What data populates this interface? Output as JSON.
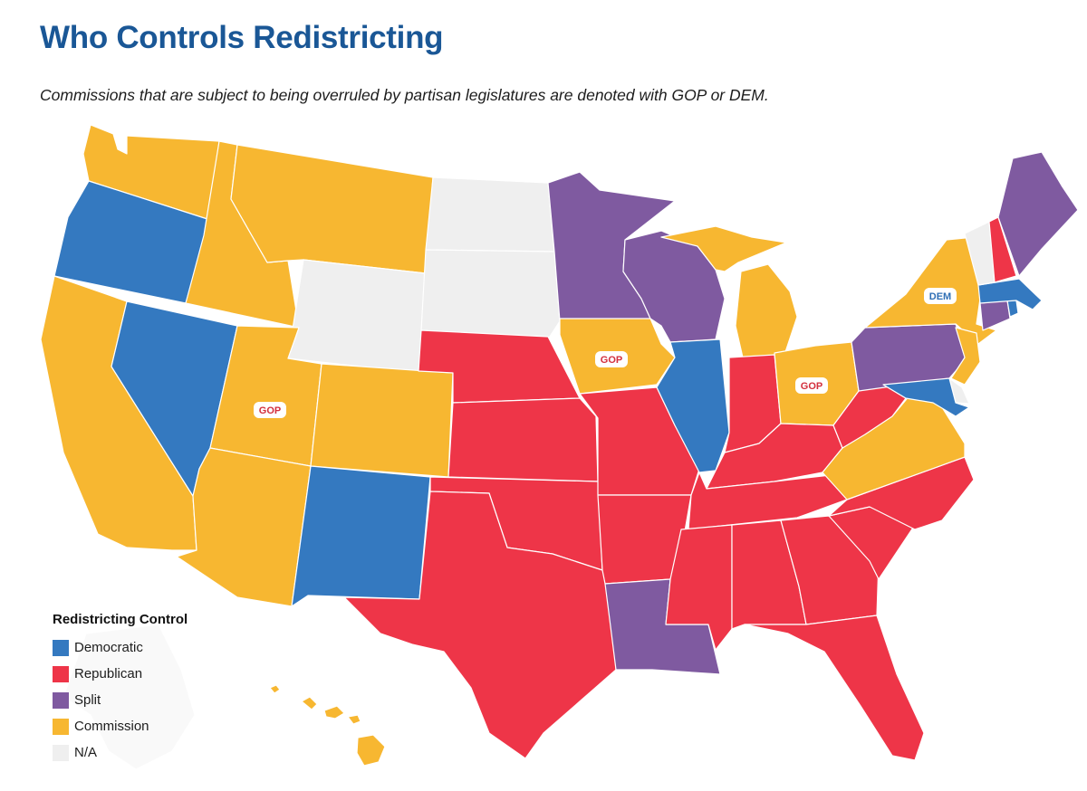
{
  "title": "Who Controls Redistricting",
  "subtitle": "Commissions that are subject to being overruled by partisan legislatures are denoted with GOP or DEM.",
  "colors": {
    "Democratic": "#3479c0",
    "Republican": "#ee3548",
    "Split": "#7f5aa0",
    "Commission": "#f7b731",
    "N/A": "#efefef"
  },
  "legend": {
    "title": "Redistricting Control",
    "items": [
      {
        "label": "Democratic",
        "category": "Democratic"
      },
      {
        "label": "Republican",
        "category": "Republican"
      },
      {
        "label": "Split",
        "category": "Split"
      },
      {
        "label": "Commission",
        "category": "Commission"
      },
      {
        "label": "N/A",
        "category": "N/A"
      }
    ]
  },
  "states": {
    "WA": "Commission",
    "OR": "Democratic",
    "CA": "Commission",
    "ID": "Commission",
    "NV": "Democratic",
    "MT": "Commission",
    "WY": "N/A",
    "UT": "Commission",
    "AZ": "Commission",
    "CO": "Commission",
    "NM": "Democratic",
    "ND": "N/A",
    "SD": "N/A",
    "NE": "Republican",
    "KS": "Republican",
    "OK": "Republican",
    "TX": "Republican",
    "MN": "Split",
    "IA": "Commission",
    "MO": "Republican",
    "AR": "Republican",
    "LA": "Split",
    "WI": "Split",
    "IL": "Democratic",
    "MI": "Commission",
    "IN": "Republican",
    "OH": "Commission",
    "KY": "Republican",
    "TN": "Republican",
    "MS": "Republican",
    "AL": "Republican",
    "GA": "Republican",
    "FL": "Republican",
    "SC": "Republican",
    "NC": "Republican",
    "VA": "Commission",
    "WV": "Republican",
    "PA": "Split",
    "NY": "Commission",
    "NJ": "Commission",
    "DE": "N/A",
    "MD": "Democratic",
    "CT": "Split",
    "RI": "Democratic",
    "MA": "Democratic",
    "VT": "N/A",
    "NH": "Republican",
    "ME": "Split",
    "HI": "Commission",
    "AK": "N/A"
  },
  "annotations": [
    {
      "state": "UT",
      "text": "GOP"
    },
    {
      "state": "IA",
      "text": "GOP"
    },
    {
      "state": "OH",
      "text": "GOP"
    },
    {
      "state": "NY",
      "text": "DEM"
    }
  ]
}
